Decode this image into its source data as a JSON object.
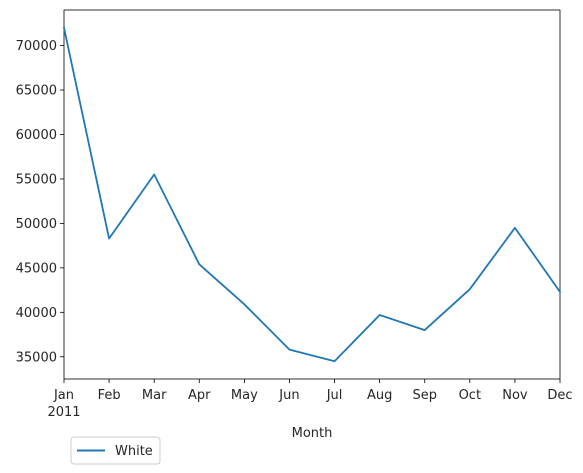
{
  "chart_data": {
    "type": "line",
    "title": "",
    "xlabel": "Month",
    "ylabel": "",
    "categories": [
      "Jan",
      "Feb",
      "Mar",
      "Apr",
      "May",
      "Jun",
      "Jul",
      "Aug",
      "Sep",
      "Oct",
      "Nov",
      "Dec"
    ],
    "year_label": "2011",
    "series": [
      {
        "name": "White",
        "color": "#1f77b4",
        "values": [
          72000,
          48300,
          55500,
          45400,
          40900,
          35800,
          34500,
          39700,
          38000,
          42600,
          49500,
          42300
        ]
      }
    ],
    "yticks": [
      35000,
      40000,
      45000,
      50000,
      55000,
      60000,
      65000,
      70000
    ],
    "ylim": [
      32500,
      74000
    ],
    "grid": false,
    "legend_position": "below-left"
  }
}
